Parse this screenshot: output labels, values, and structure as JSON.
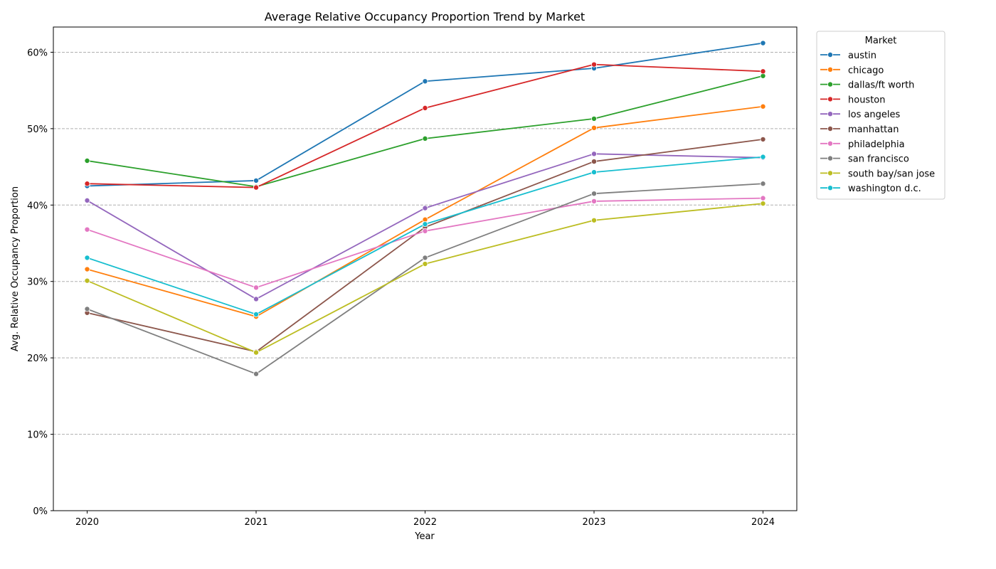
{
  "chart_data": {
    "type": "line",
    "title": "Average Relative Occupancy Proportion Trend by Market",
    "xlabel": "Year",
    "ylabel": "Avg. Relative Occupancy Proportion",
    "x": [
      2020,
      2021,
      2022,
      2023,
      2024
    ],
    "x_tick_labels": [
      "2020",
      "2021",
      "2022",
      "2023",
      "2024"
    ],
    "ylim": [
      0,
      0.633
    ],
    "y_ticks": [
      0,
      0.1,
      0.2,
      0.3,
      0.4,
      0.5,
      0.6
    ],
    "y_tick_labels": [
      "0%",
      "10%",
      "20%",
      "30%",
      "40%",
      "50%",
      "60%"
    ],
    "grid": "horizontal dashed",
    "legend": {
      "title": "Market",
      "placement": "outside-top-right"
    },
    "series": [
      {
        "name": "austin",
        "color": "#1f77b4",
        "values": [
          0.425,
          0.432,
          0.562,
          0.579,
          0.612
        ]
      },
      {
        "name": "chicago",
        "color": "#ff7f0e",
        "values": [
          0.316,
          0.254,
          0.381,
          0.501,
          0.529
        ]
      },
      {
        "name": "dallas/ft worth",
        "color": "#2ca02c",
        "values": [
          0.458,
          0.424,
          0.487,
          0.513,
          0.569
        ]
      },
      {
        "name": "houston",
        "color": "#d62728",
        "values": [
          0.428,
          0.423,
          0.527,
          0.584,
          0.575
        ]
      },
      {
        "name": "los angeles",
        "color": "#9467bd",
        "values": [
          0.406,
          0.277,
          0.396,
          0.467,
          0.462
        ]
      },
      {
        "name": "manhattan",
        "color": "#8c564b",
        "values": [
          0.259,
          0.208,
          0.371,
          0.457,
          0.486
        ]
      },
      {
        "name": "philadelphia",
        "color": "#e377c2",
        "values": [
          0.368,
          0.292,
          0.366,
          0.405,
          0.409
        ]
      },
      {
        "name": "san francisco",
        "color": "#7f7f7f",
        "values": [
          0.264,
          0.179,
          0.331,
          0.415,
          0.428
        ]
      },
      {
        "name": "south bay/san jose",
        "color": "#bcbd22",
        "values": [
          0.301,
          0.207,
          0.323,
          0.38,
          0.402
        ]
      },
      {
        "name": "washington d.c.",
        "color": "#17becf",
        "values": [
          0.331,
          0.257,
          0.375,
          0.443,
          0.463
        ]
      }
    ]
  }
}
